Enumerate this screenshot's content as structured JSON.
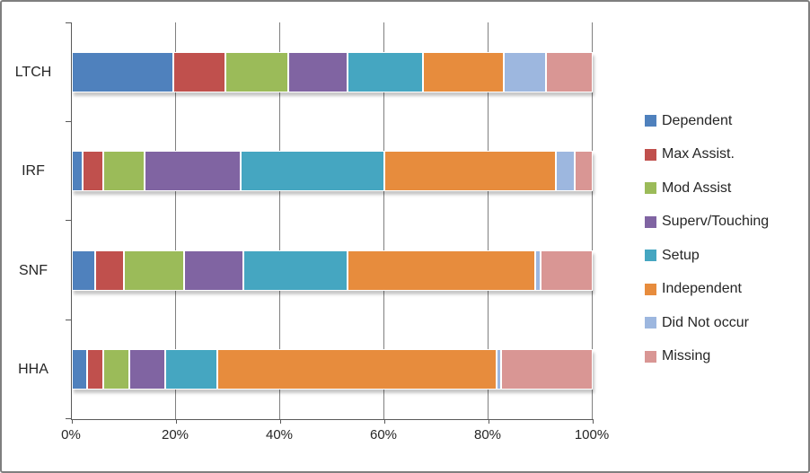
{
  "chart_data": {
    "type": "bar",
    "orientation": "horizontal",
    "stacked": true,
    "stack_unit": "percent",
    "title": "",
    "xlabel": "",
    "ylabel": "",
    "categories": [
      "LTCH",
      "IRF",
      "SNF",
      "HHA"
    ],
    "series": [
      {
        "name": "Dependent",
        "color": "#4F81BD",
        "values": [
          19.5,
          2,
          4.5,
          3
        ]
      },
      {
        "name": "Max Assist.",
        "color": "#C0504D",
        "values": [
          10,
          4,
          5.5,
          3
        ]
      },
      {
        "name": "Mod Assist",
        "color": "#9BBB59",
        "values": [
          12,
          8,
          11.5,
          5
        ]
      },
      {
        "name": "Superv/Touching",
        "color": "#8064A2",
        "values": [
          11.5,
          18.5,
          11.5,
          7
        ]
      },
      {
        "name": "Setup",
        "color": "#45A6C1",
        "values": [
          14.5,
          27.5,
          20,
          10
        ]
      },
      {
        "name": "Independent",
        "color": "#E78C3D",
        "values": [
          15.5,
          33,
          36,
          53.5
        ]
      },
      {
        "name": "Did Not occur",
        "color": "#9DB7DF",
        "values": [
          8,
          3.5,
          1,
          1
        ]
      },
      {
        "name": "Missing",
        "color": "#D99694",
        "values": [
          9,
          3.5,
          10,
          17.5
        ]
      }
    ],
    "xlim": [
      0,
      100
    ],
    "x_tick_step": 20,
    "x_tick_labels": [
      "0%",
      "20%",
      "40%",
      "60%",
      "80%",
      "100%"
    ],
    "grid": "vertical",
    "legend_position": "right",
    "legend_labels": [
      "Dependent",
      "Max Assist.",
      "Mod Assist",
      "Superv/Touching",
      "Setup",
      "Independent",
      "Did Not occur",
      "Missing"
    ]
  },
  "style_colors": {
    "axis": "#595959",
    "gridline": "#808080",
    "text": "#262626",
    "frame_border": "#7F7F7F",
    "background": "#FFFFFF"
  }
}
